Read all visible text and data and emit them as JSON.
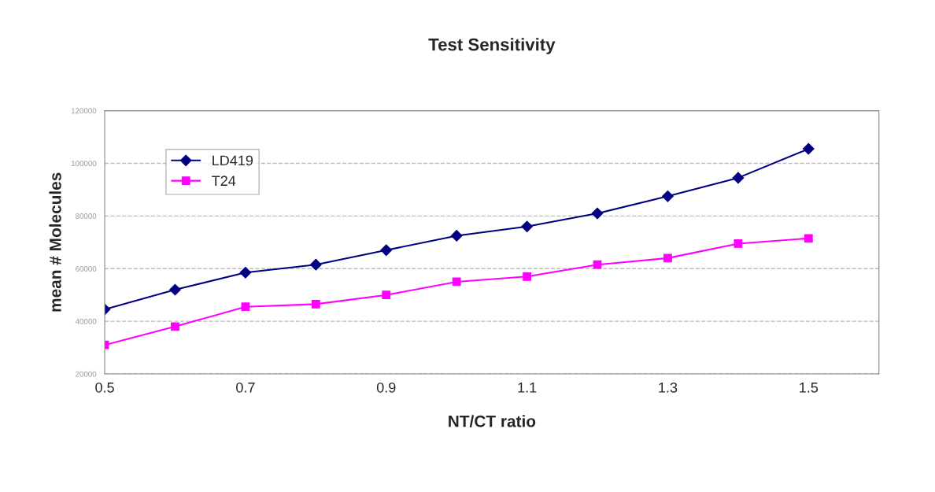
{
  "chart_data": {
    "type": "line",
    "title": "Test Sensitivity",
    "xlabel": "NT/CT ratio",
    "ylabel": "mean # Molecules",
    "x": [
      0.5,
      0.6,
      0.7,
      0.8,
      0.9,
      1.0,
      1.1,
      1.2,
      1.3,
      1.4,
      1.5
    ],
    "series": [
      {
        "name": "LD419",
        "color": "#000080",
        "marker": "diamond",
        "values": [
          44500,
          52000,
          58500,
          61500,
          67000,
          72500,
          76000,
          81000,
          87500,
          94500,
          105500
        ]
      },
      {
        "name": "T24",
        "color": "#ff00ff",
        "marker": "square",
        "values": [
          31000,
          38000,
          45500,
          46500,
          50000,
          55000,
          57000,
          61500,
          64000,
          69500,
          71500
        ]
      }
    ],
    "xlim": [
      0.5,
      1.6
    ],
    "xticks": [
      0.5,
      0.7,
      0.9,
      1.1,
      1.3,
      1.5
    ],
    "ylim": [
      20000,
      120000
    ],
    "yticks": [
      20000,
      40000,
      60000,
      80000,
      100000,
      120000
    ],
    "grid": "y",
    "legend": "top left"
  }
}
